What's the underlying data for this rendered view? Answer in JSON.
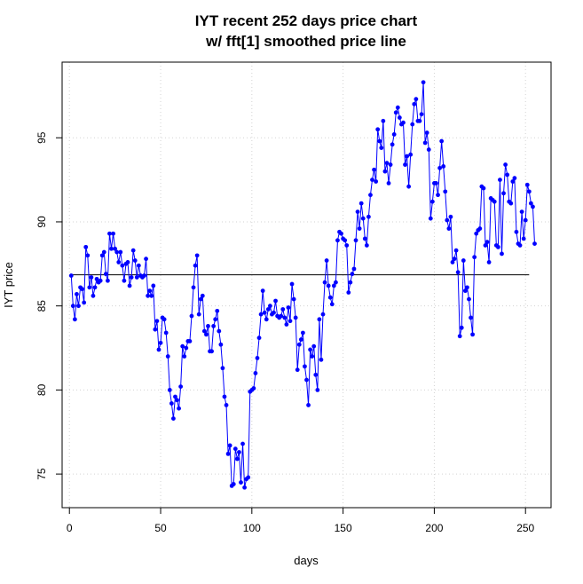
{
  "chart_data": {
    "type": "line",
    "title": "IYT recent 252 days price chart",
    "subtitle": "w/ fft[1] smoothed price line",
    "xlabel": "days",
    "ylabel": "IYT price",
    "xlim": [
      -4,
      264
    ],
    "ylim": [
      73.0,
      99.5
    ],
    "x_ticks": [
      0,
      50,
      100,
      150,
      200,
      250
    ],
    "y_ticks": [
      75,
      80,
      85,
      90,
      95
    ],
    "grid": true,
    "legend": "none",
    "colors": {
      "price": "#0000ff",
      "smoothed": "#000000",
      "grid": "#d3d3d3"
    },
    "series": [
      {
        "key": "price",
        "x_start": 1,
        "values": [
          86.8,
          85.0,
          84.2,
          85.7,
          85.0,
          86.1,
          86.0,
          85.2,
          88.5,
          88.0,
          86.1,
          86.7,
          85.6,
          86.1,
          86.6,
          86.4,
          86.5,
          88.0,
          88.2,
          86.9,
          86.5,
          89.3,
          88.4,
          89.3,
          88.4,
          88.2,
          87.6,
          88.2,
          87.4,
          86.5,
          87.5,
          87.6,
          86.2,
          86.7,
          88.3,
          87.7,
          86.7,
          87.4,
          86.8,
          86.7,
          86.8,
          87.8,
          85.6,
          85.9,
          85.6,
          86.2,
          83.6,
          84.1,
          82.4,
          82.8,
          84.3,
          84.2,
          83.4,
          82.0,
          80.0,
          79.2,
          78.3,
          79.6,
          79.4,
          78.9,
          80.2,
          82.6,
          82.0,
          82.5,
          82.9,
          82.9,
          84.4,
          86.1,
          87.4,
          88.0,
          84.5,
          85.4,
          85.6,
          83.5,
          83.3,
          83.8,
          82.3,
          82.3,
          83.8,
          84.2,
          84.7,
          83.5,
          82.7,
          81.3,
          79.6,
          79.1,
          76.2,
          76.7,
          74.3,
          74.4,
          76.5,
          75.9,
          76.3,
          74.5,
          76.8,
          74.2,
          74.7,
          74.8,
          79.9,
          80.0,
          80.1,
          81.0,
          81.9,
          83.1,
          84.5,
          85.9,
          84.6,
          84.2,
          84.8,
          85.0,
          84.5,
          84.6,
          85.3,
          84.4,
          84.3,
          84.4,
          84.8,
          84.3,
          83.9,
          84.9,
          84.1,
          86.3,
          85.4,
          84.3,
          81.2,
          82.7,
          83.0,
          83.4,
          81.4,
          80.6,
          79.1,
          82.4,
          82.0,
          82.6,
          80.9,
          80.0,
          84.2,
          81.8,
          84.5,
          86.4,
          87.7,
          86.2,
          85.5,
          85.1,
          86.2,
          86.4,
          88.9,
          89.4,
          89.3,
          89.0,
          88.9,
          88.6,
          85.8,
          86.4,
          86.9,
          87.2,
          88.9,
          90.6,
          89.6,
          91.1,
          90.2,
          89.0,
          88.6,
          90.3,
          91.6,
          92.5,
          93.1,
          92.4,
          95.5,
          94.8,
          94.4,
          96.0,
          93.0,
          93.5,
          92.3,
          93.4,
          94.6,
          95.2,
          96.5,
          96.8,
          96.2,
          95.8,
          95.9,
          93.4,
          93.9,
          92.1,
          94.0,
          95.8,
          97.0,
          97.3,
          96.0,
          96.0,
          96.4,
          98.3,
          94.7,
          95.3,
          94.3,
          90.2,
          91.2,
          92.3,
          92.3,
          91.6,
          93.2,
          94.8,
          93.3,
          91.8,
          90.1,
          89.6,
          90.3,
          87.6,
          87.8,
          88.3,
          87.0,
          83.2,
          83.7,
          87.7,
          85.9,
          86.1,
          85.4,
          84.3,
          83.3,
          87.9,
          89.3,
          89.5,
          89.6,
          92.1,
          92.0,
          88.6,
          88.8,
          87.6,
          91.4,
          91.3,
          91.2,
          88.6,
          88.5,
          92.5,
          88.1,
          91.7,
          93.4,
          92.8,
          91.2,
          91.1,
          92.4,
          92.6,
          89.4,
          88.7,
          88.6,
          90.6,
          89.0,
          90.1,
          92.2,
          91.8,
          91.1,
          90.9,
          88.7
        ]
      },
      {
        "key": "smoothed",
        "x": [
          1,
          252
        ],
        "values": [
          86.85,
          86.85
        ]
      }
    ]
  }
}
